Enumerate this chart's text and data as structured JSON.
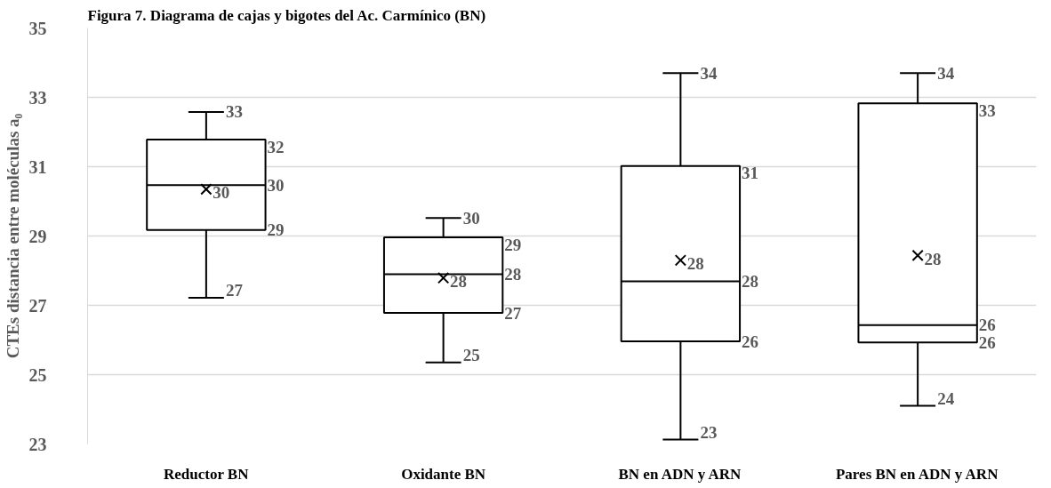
{
  "chart_data": {
    "type": "box",
    "title": "Figura 7. Diagrama de cajas y bigotes del Ac. Carmínico (BN)",
    "ylabel": "CTEs distancia entre moléculas a₀",
    "categories": [
      "Reductor BN",
      "Oxidante BN",
      "BN en ADN y ARN",
      "Pares BN en ADN y ARN"
    ],
    "color": "#000000",
    "ylim": [
      23,
      35
    ],
    "yticks": [
      23,
      25,
      27,
      29,
      31,
      33,
      35
    ],
    "grid": "y",
    "boxes": [
      {
        "low": 27.22,
        "q1": 29.17,
        "median": 30.47,
        "q3": 31.78,
        "high": 32.58,
        "mean": 30.35
      },
      {
        "low": 25.35,
        "q1": 26.78,
        "median": 27.9,
        "q3": 28.96,
        "high": 29.52,
        "mean": 27.79
      },
      {
        "low": 23.13,
        "q1": 25.96,
        "median": 27.69,
        "q3": 31.02,
        "high": 33.7,
        "mean": 28.3
      },
      {
        "low": 24.1,
        "q1": 25.93,
        "median": 26.43,
        "q3": 32.83,
        "high": 33.7,
        "mean": 28.44
      }
    ],
    "value_labels": [
      [
        "33",
        "32",
        "30",
        "29",
        "27",
        "30"
      ],
      [
        "30",
        "29",
        "28",
        "27",
        "25",
        "28"
      ],
      [
        "34",
        "31",
        "28",
        "26",
        "23",
        "28"
      ],
      [
        "34",
        "33",
        "26",
        "26",
        "24",
        "28"
      ]
    ]
  }
}
